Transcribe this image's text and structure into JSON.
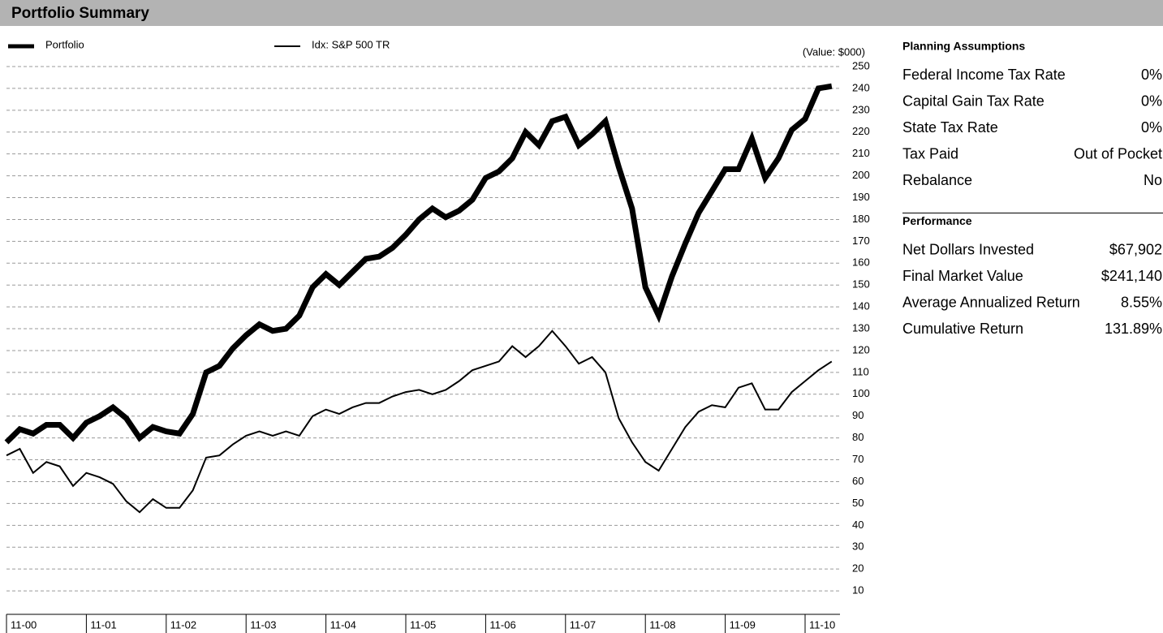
{
  "header": {
    "title": "Portfolio Summary"
  },
  "chart_data": {
    "type": "line",
    "y_label": "(Value: $000)",
    "x": [
      0,
      2,
      4,
      6,
      8,
      10,
      12,
      14,
      16,
      18,
      20,
      22,
      24,
      26,
      28,
      30,
      32,
      34,
      36,
      38,
      40,
      42,
      44,
      46,
      48,
      50,
      52,
      54,
      56,
      58,
      60,
      62,
      64,
      66,
      68,
      70,
      72,
      74,
      76,
      78,
      80,
      82,
      84,
      86,
      88,
      90,
      92,
      94,
      96,
      98,
      100,
      102,
      104,
      106,
      108,
      110,
      112,
      114,
      116,
      118,
      120,
      122,
      124
    ],
    "series": [
      {
        "name": "Portfolio",
        "color": "#000000",
        "values": [
          78,
          84,
          82,
          86,
          86,
          80,
          87,
          90,
          94,
          89,
          80,
          85,
          83,
          82,
          91,
          110,
          113,
          121,
          127,
          132,
          129,
          130,
          136,
          149,
          155,
          150,
          156,
          162,
          163,
          167,
          173,
          180,
          185,
          181,
          184,
          189,
          199,
          202,
          208,
          220,
          214,
          225,
          227,
          214,
          219,
          225,
          204,
          185,
          149,
          136,
          154,
          169,
          183,
          193,
          203,
          203,
          217,
          199,
          208,
          221,
          226,
          240,
          241
        ]
      },
      {
        "name": "Idx: S&P 500 TR",
        "color": "#000000",
        "values": [
          72,
          75,
          64,
          69,
          67,
          58,
          64,
          62,
          59,
          51,
          46,
          52,
          48,
          48,
          56,
          71,
          72,
          77,
          81,
          83,
          81,
          83,
          81,
          90,
          93,
          91,
          94,
          96,
          96,
          99,
          101,
          102,
          100,
          102,
          106,
          111,
          113,
          115,
          122,
          117,
          122,
          129,
          122,
          114,
          117,
          110,
          89,
          78,
          69,
          65,
          75,
          85,
          92,
          95,
          94,
          103,
          105,
          93,
          93,
          101,
          106,
          111,
          115
        ]
      }
    ],
    "xlim": [
      0,
      125
    ],
    "xticks": [
      {
        "value": 0,
        "label": "11-00"
      },
      {
        "value": 12,
        "label": "11-01"
      },
      {
        "value": 24,
        "label": "11-02"
      },
      {
        "value": 36,
        "label": "11-03"
      },
      {
        "value": 48,
        "label": "11-04"
      },
      {
        "value": 60,
        "label": "11-05"
      },
      {
        "value": 72,
        "label": "11-06"
      },
      {
        "value": 84,
        "label": "11-07"
      },
      {
        "value": 96,
        "label": "11-08"
      },
      {
        "value": 108,
        "label": "11-09"
      },
      {
        "value": 120,
        "label": "11-10"
      }
    ],
    "ylim": [
      0,
      250
    ],
    "yticks": [
      10,
      20,
      30,
      40,
      50,
      60,
      70,
      80,
      90,
      100,
      110,
      120,
      130,
      140,
      150,
      160,
      170,
      180,
      190,
      200,
      210,
      220,
      230,
      240,
      250
    ],
    "grid": true
  },
  "sidebar": {
    "sections": [
      {
        "title": "Planning Assumptions",
        "rows": [
          [
            "Federal Income Tax Rate",
            "0%"
          ],
          [
            "Capital Gain Tax Rate",
            "0%"
          ],
          [
            "State Tax Rate",
            "0%"
          ],
          [
            "Tax Paid",
            "Out of Pocket"
          ],
          [
            "Rebalance",
            "No"
          ]
        ]
      },
      {
        "title": "Performance",
        "rows": [
          [
            "Net Dollars Invested",
            "$67,902"
          ],
          [
            "Final Market Value",
            "$241,140"
          ],
          [
            "Average Annualized Return",
            "8.55%"
          ],
          [
            "Cumulative Return",
            "131.89%"
          ]
        ]
      }
    ]
  }
}
